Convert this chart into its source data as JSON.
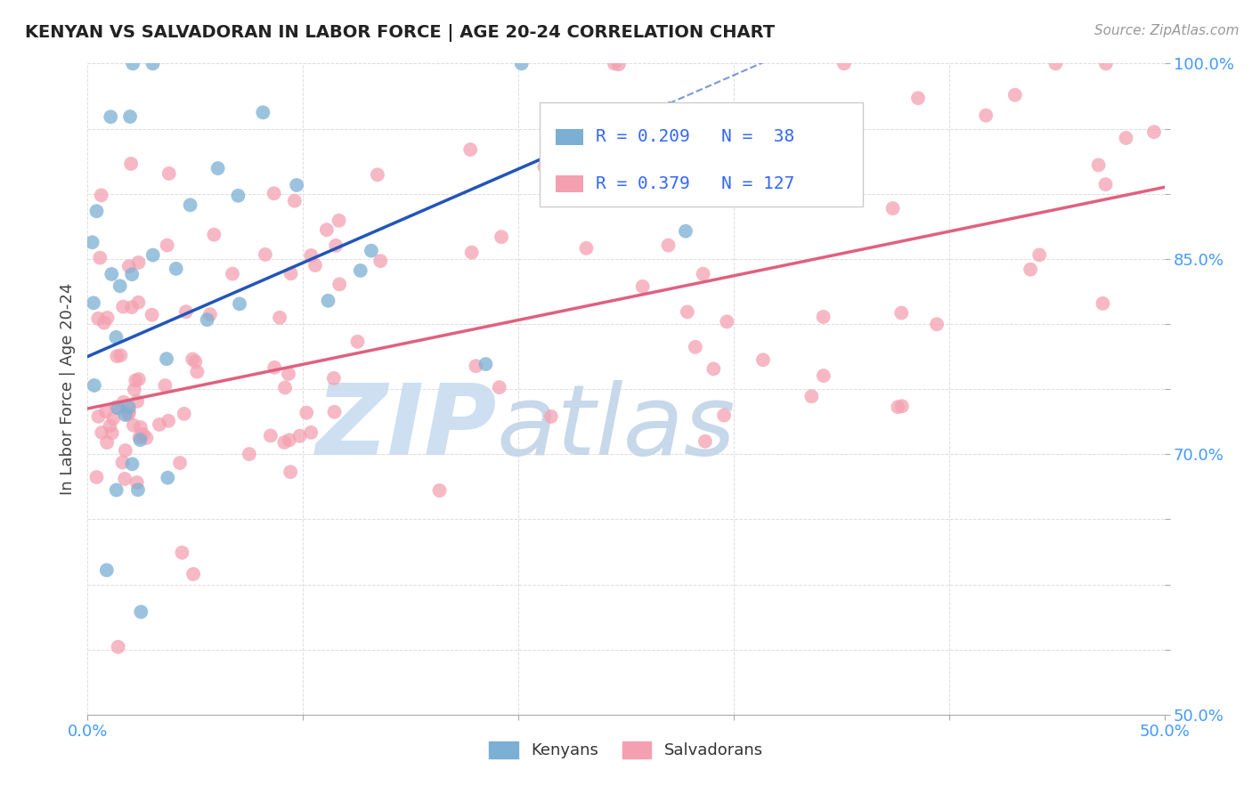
{
  "title": "KENYAN VS SALVADORAN IN LABOR FORCE | AGE 20-24 CORRELATION CHART",
  "source_text": "Source: ZipAtlas.com",
  "ylabel": "In Labor Force | Age 20-24",
  "xlim": [
    0.0,
    0.5
  ],
  "ylim": [
    0.5,
    1.0
  ],
  "xtick_vals": [
    0.0,
    0.1,
    0.2,
    0.3,
    0.4,
    0.5
  ],
  "xtick_labels": [
    "0.0%",
    "",
    "",
    "",
    "",
    "50.0%"
  ],
  "ytick_vals": [
    0.5,
    0.55,
    0.6,
    0.65,
    0.7,
    0.75,
    0.8,
    0.85,
    0.9,
    0.95,
    1.0
  ],
  "ytick_labels": [
    "50.0%",
    "",
    "",
    "",
    "70.0%",
    "",
    "",
    "85.0%",
    "",
    "",
    "100.0%"
  ],
  "kenyan_color": "#7BAFD4",
  "salvadoran_color": "#F4A0B0",
  "kenyan_trend_color": "#2255BB",
  "salvadoran_trend_color": "#E06080",
  "background_color": "#FFFFFF",
  "grid_color": "#DDDDDD",
  "tick_color": "#4499FF",
  "title_color": "#222222",
  "source_color": "#999999",
  "ylabel_color": "#444444",
  "legend_text_color": "#3366FF",
  "watermark_zip_color": "#C8DCF0",
  "watermark_atlas_color": "#C0D4E8"
}
